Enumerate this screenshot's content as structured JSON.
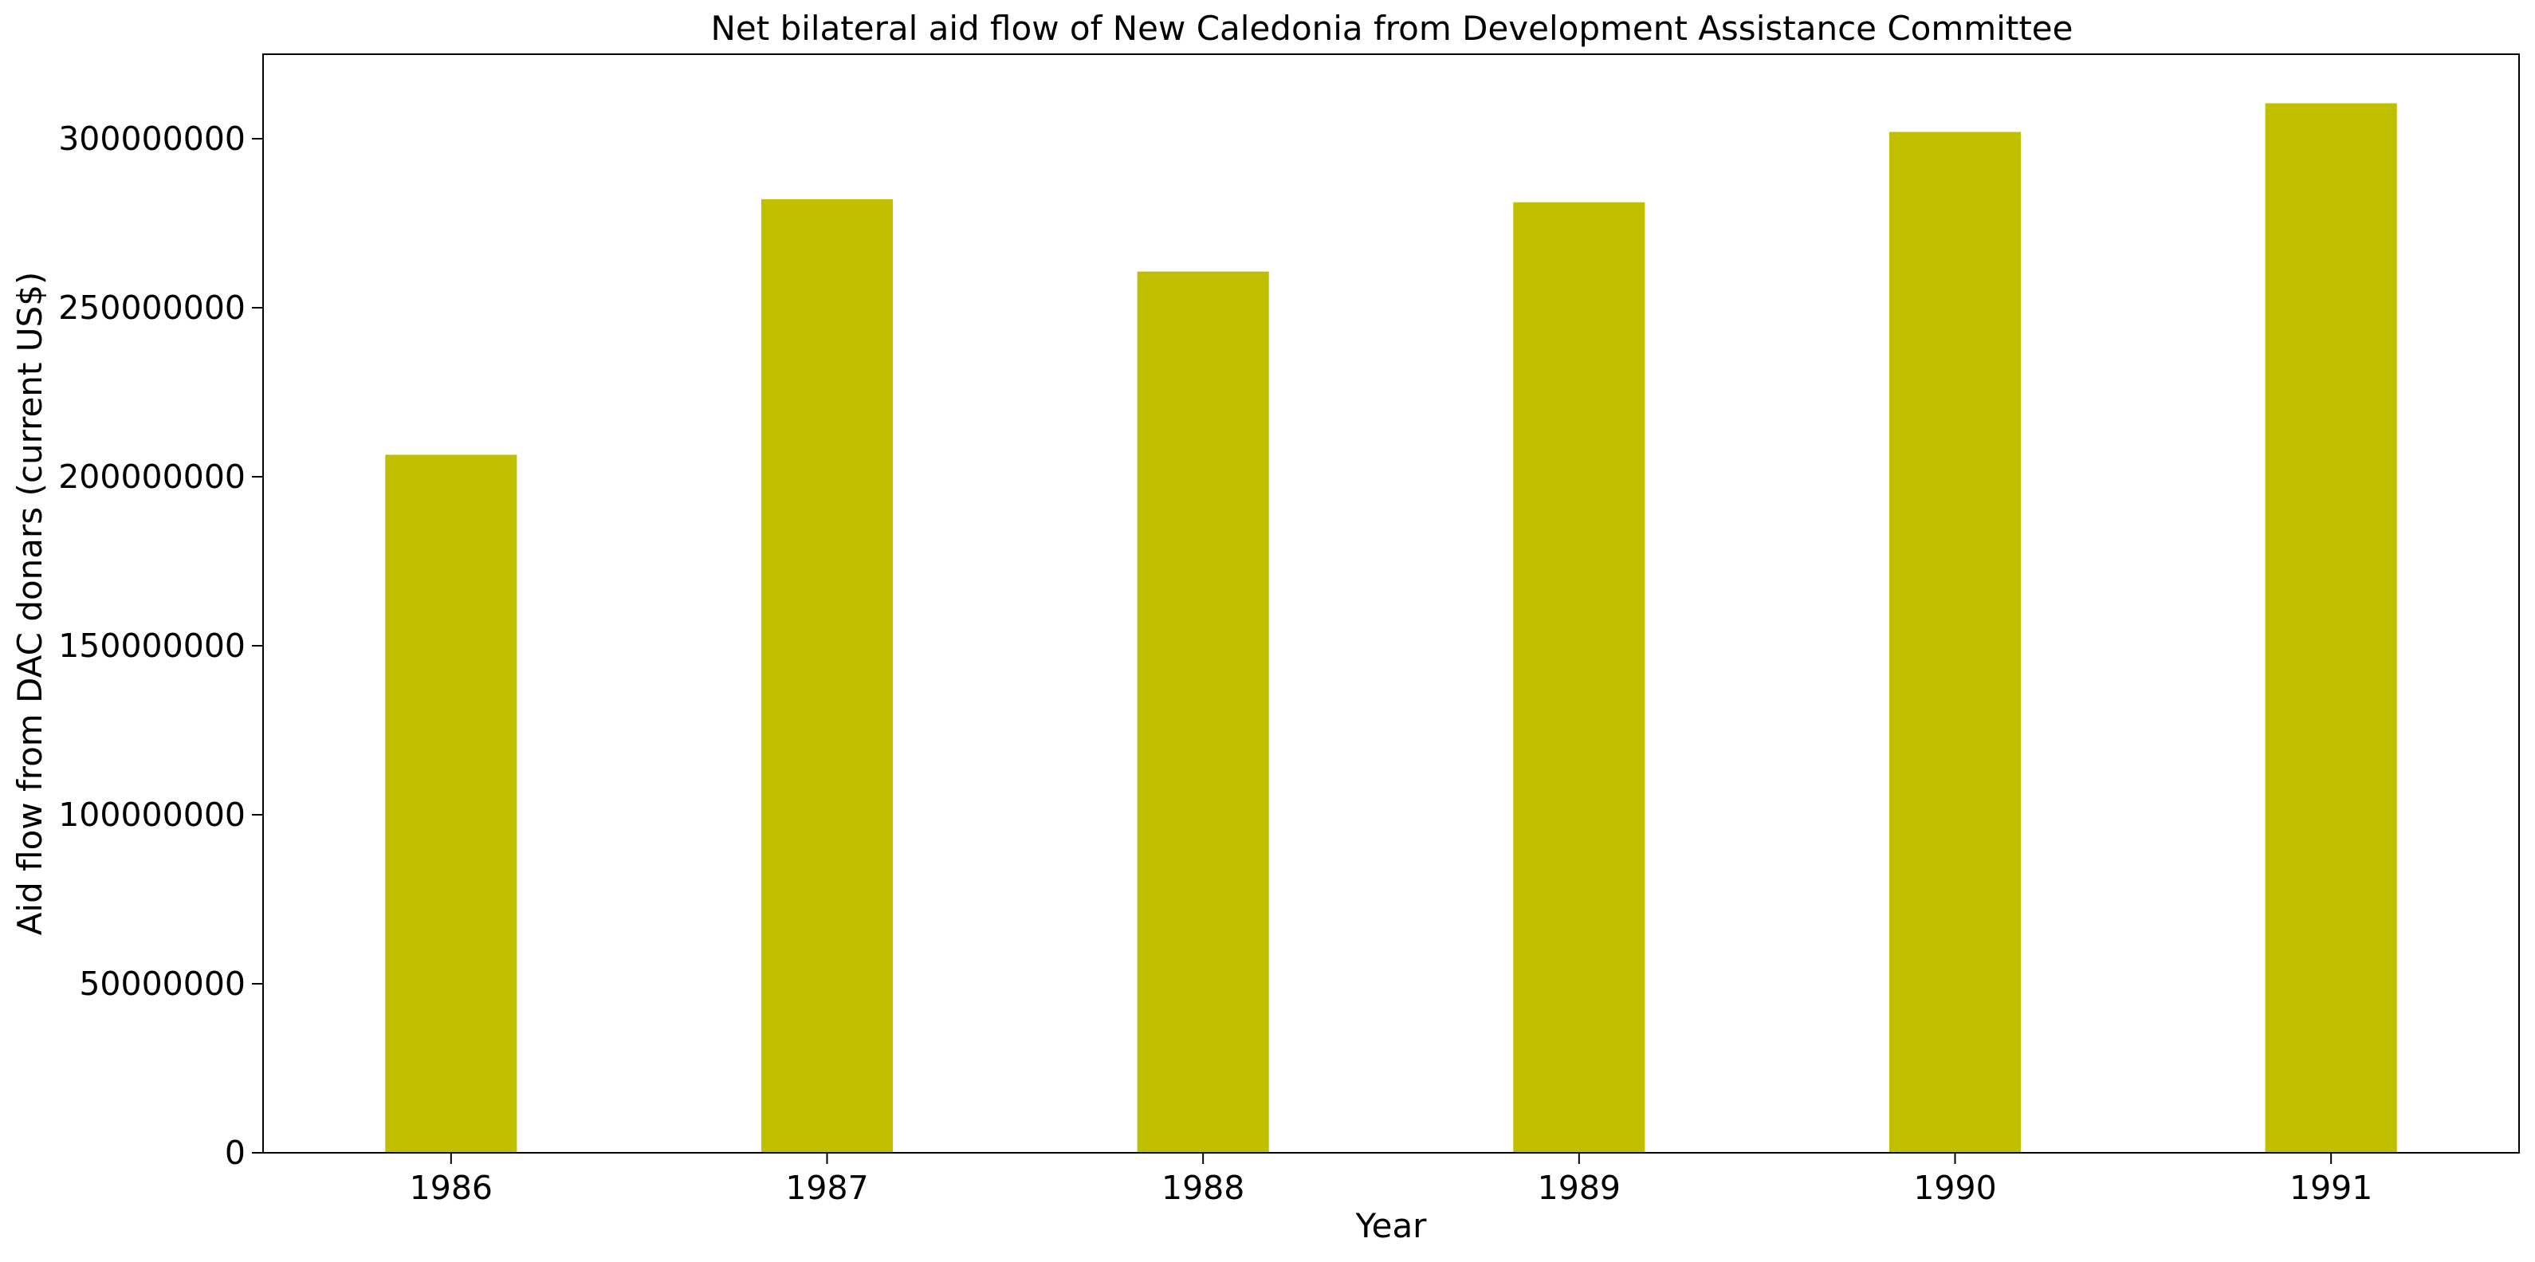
{
  "chart_data": {
    "type": "bar",
    "title": "Net bilateral aid flow of New Caledonia from Development Assistance Committee",
    "xlabel": "Year",
    "ylabel": "Aid flow from DAC donars (current US$)",
    "categories": [
      "1986",
      "1987",
      "1988",
      "1989",
      "1990",
      "1991"
    ],
    "values": [
      206500000,
      282100000,
      260700000,
      281200000,
      302000000,
      310500000
    ],
    "ylim": [
      0,
      325000000
    ],
    "yticks": [
      0,
      50000000,
      100000000,
      150000000,
      200000000,
      250000000,
      300000000
    ],
    "ytick_labels": [
      "0",
      "50000000",
      "100000000",
      "150000000",
      "200000000",
      "250000000",
      "300000000"
    ],
    "bar_color": "#bfbf00",
    "grid": false,
    "legend": "none"
  }
}
